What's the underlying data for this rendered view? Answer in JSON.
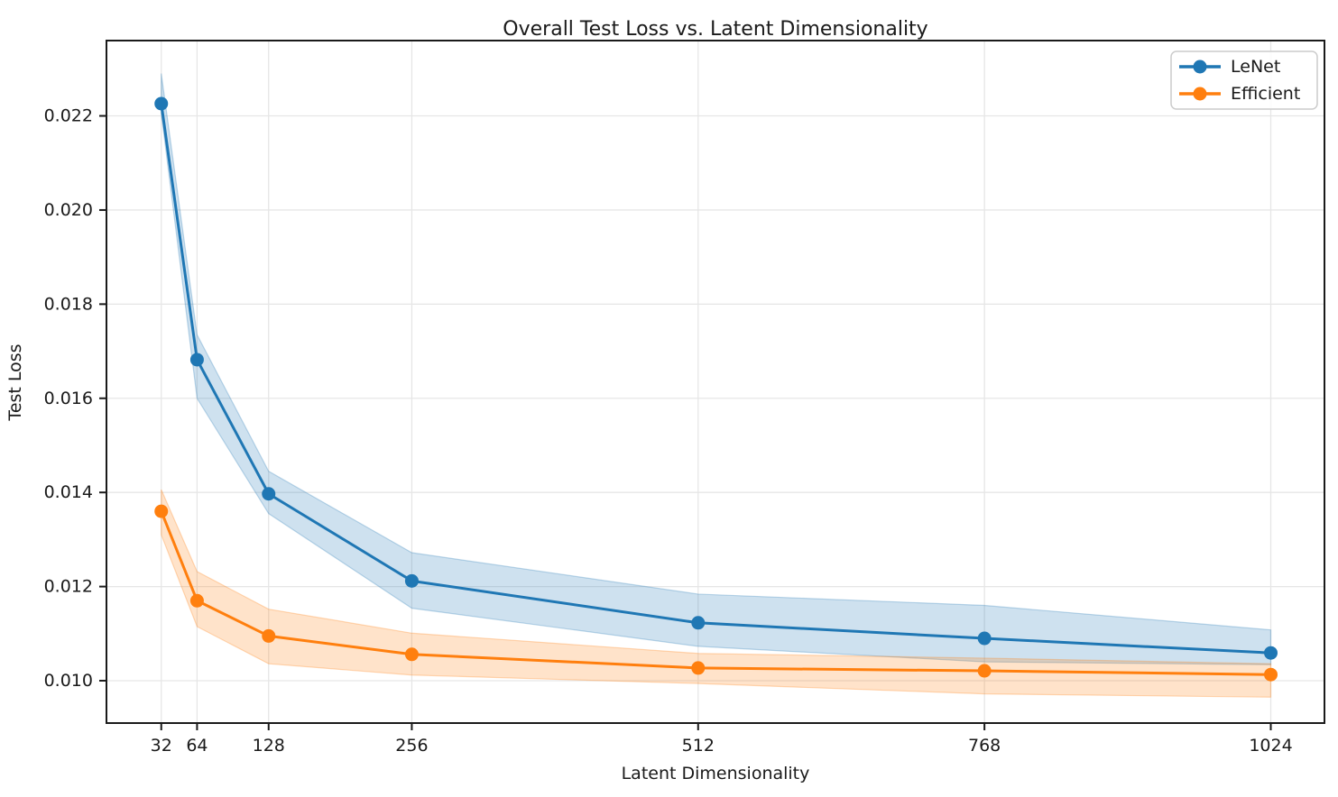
{
  "chart_data": {
    "type": "line",
    "title": "Overall Test Loss vs. Latent Dimensionality",
    "xlabel": "Latent Dimensionality",
    "ylabel": "Test Loss",
    "x": [
      32,
      64,
      128,
      256,
      512,
      768,
      1024
    ],
    "xtick_labels": [
      "32",
      "64",
      "128",
      "256",
      "512",
      "768",
      "1024"
    ],
    "ytick_values": [
      0.01,
      0.012,
      0.014,
      0.016,
      0.018,
      0.02,
      0.022
    ],
    "ytick_labels": [
      "0.010",
      "0.012",
      "0.014",
      "0.016",
      "0.018",
      "0.020",
      "0.022"
    ],
    "xlim": [
      -17,
      1072
    ],
    "ylim": [
      0.0091,
      0.0236
    ],
    "grid": true,
    "grid_color": "#e6e6e6",
    "band_alpha": 0.22,
    "legend": {
      "position": "upper right",
      "entries": [
        "LeNet",
        "Efficient"
      ]
    },
    "series": [
      {
        "name": "LeNet",
        "color": "#1f77b4",
        "values": [
          0.02226,
          0.01682,
          0.01397,
          0.01212,
          0.01123,
          0.0109,
          0.01059
        ],
        "band_upper": [
          0.0229,
          0.01735,
          0.01445,
          0.01272,
          0.01184,
          0.0116,
          0.01108
        ],
        "band_lower": [
          0.02205,
          0.016,
          0.01355,
          0.01154,
          0.01073,
          0.0104,
          0.01034
        ]
      },
      {
        "name": "Efficient",
        "color": "#ff7f0e",
        "values": [
          0.0136,
          0.0117,
          0.01095,
          0.01056,
          0.01027,
          0.01021,
          0.01013
        ],
        "band_upper": [
          0.01406,
          0.01232,
          0.01152,
          0.01101,
          0.01058,
          0.01048,
          0.01036
        ],
        "band_lower": [
          0.0131,
          0.01115,
          0.01036,
          0.01012,
          0.00994,
          0.00972,
          0.00965
        ]
      }
    ]
  }
}
